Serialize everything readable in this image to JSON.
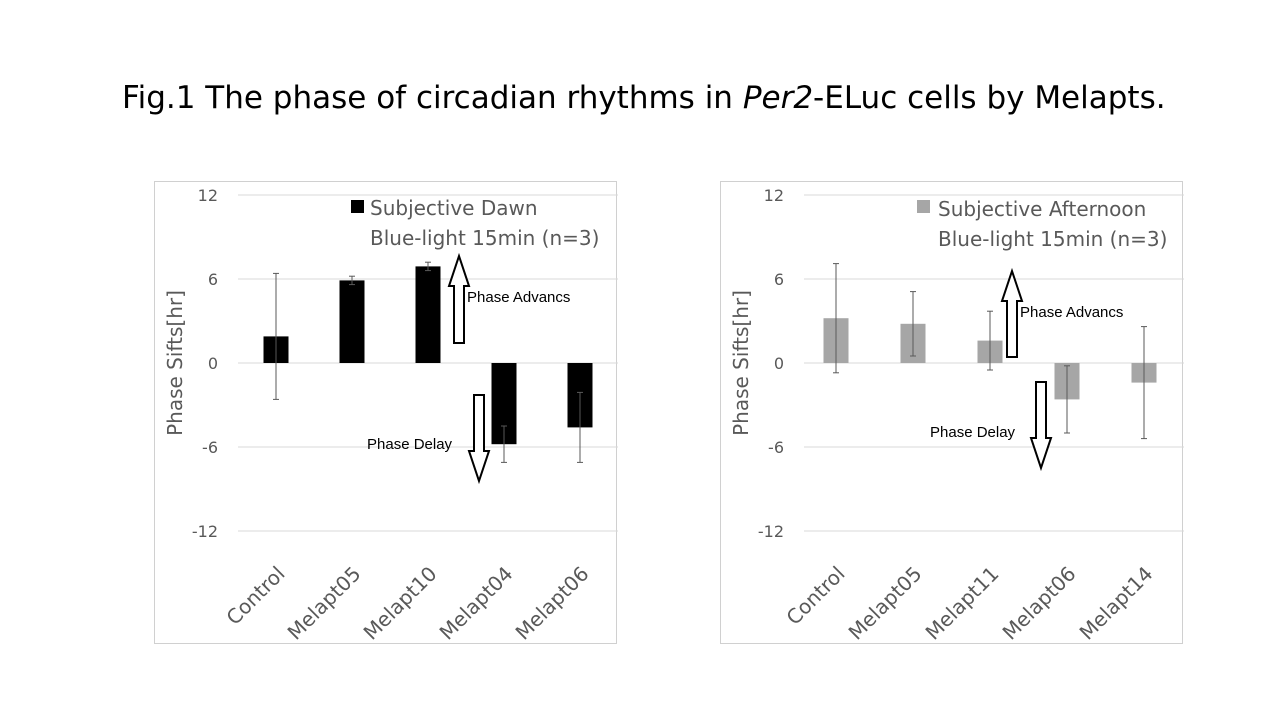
{
  "figure": {
    "title_prefix": "Fig.1 The phase of circadian rhythms in ",
    "title_italic": "Per2",
    "title_suffix": "-ELuc cells by Melapts."
  },
  "chart_data": [
    {
      "type": "bar",
      "ylabel": "Phase Sifts[hr]",
      "ylim": [
        -12,
        12
      ],
      "yticks": [
        12,
        6,
        0,
        -6,
        -12
      ],
      "grid": true,
      "legend_position": "top-right",
      "legend_line1": "Subjective Dawn",
      "legend_line2": "Blue-light 15min (n=3)",
      "bar_color": "#000000",
      "categories": [
        "Control",
        "Melapt05",
        "Melapt10",
        "Melapt04",
        "Melapt06"
      ],
      "series": [
        {
          "values": [
            1.9,
            5.9,
            6.9,
            -5.8,
            -4.6
          ],
          "error": [
            4.5,
            0.3,
            0.3,
            1.3,
            2.5
          ]
        }
      ],
      "annotations": {
        "advance": "Phase Advancs",
        "delay": "Phase Delay"
      }
    },
    {
      "type": "bar",
      "ylabel": "Phase Sifts[hr]",
      "ylim": [
        -12,
        12
      ],
      "yticks": [
        12,
        6,
        0,
        -6,
        -12
      ],
      "grid": true,
      "legend_position": "top-right",
      "legend_line1": "Subjective Afternoon",
      "legend_line2": "Blue-light 15min (n=3)",
      "bar_color": "#a6a6a6",
      "categories": [
        "Control",
        "Melapt05",
        "Melapt11",
        "Melapt06",
        "Melapt14"
      ],
      "series": [
        {
          "values": [
            3.2,
            2.8,
            1.6,
            -2.6,
            -1.4
          ],
          "error": [
            3.9,
            2.3,
            2.1,
            2.4,
            4.0
          ]
        }
      ],
      "annotations": {
        "advance": "Phase Advancs",
        "delay": "Phase Delay"
      }
    }
  ]
}
